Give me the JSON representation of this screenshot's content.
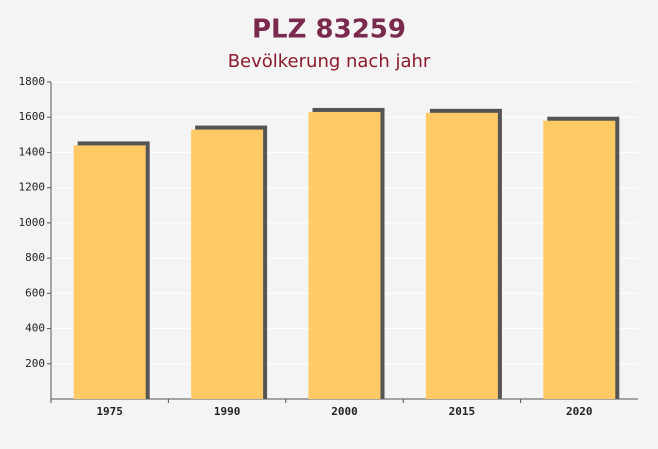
{
  "chart_data": {
    "type": "bar",
    "title": "PLZ 83259",
    "subtitle": "Bevölkerung nach jahr",
    "categories": [
      "1975",
      "1990",
      "2000",
      "2015",
      "2020"
    ],
    "values": [
      1440,
      1530,
      1630,
      1625,
      1580
    ],
    "color": "#ffc966",
    "ylim": [
      0,
      1800
    ],
    "yticks": [
      200,
      400,
      600,
      800,
      1000,
      1200,
      1400,
      1600,
      1800
    ],
    "grid": true
  }
}
